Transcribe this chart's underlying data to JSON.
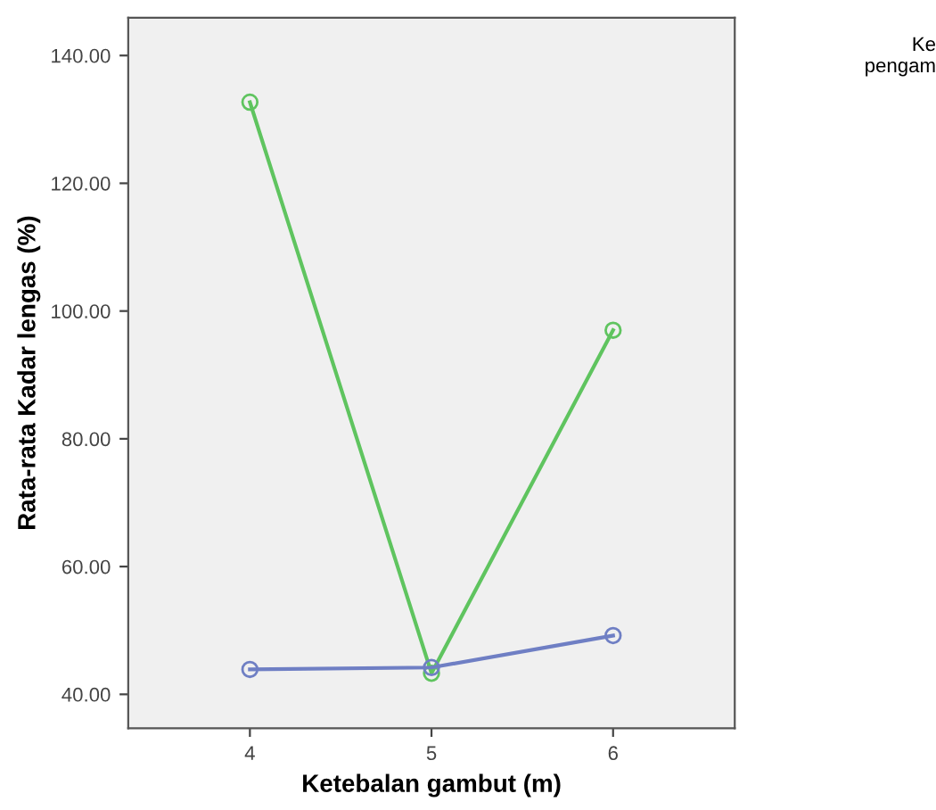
{
  "chart_data": {
    "type": "line",
    "xlabel": "Ketebalan gambut (m)",
    "ylabel": "Rata-rata Kadar lengas (%)",
    "legend_title": "Ke\npengam",
    "categories": [
      "4",
      "5",
      "6"
    ],
    "series": [
      {
        "color": "#5fc45f",
        "values": [
          132.7,
          43.3,
          97.0
        ]
      },
      {
        "color": "#6f7fc4",
        "values": [
          43.9,
          44.2,
          49.2
        ]
      }
    ],
    "ylim": [
      34.7,
      145.9
    ],
    "yticks": [
      {
        "value": 40,
        "label": "40.00"
      },
      {
        "value": 60,
        "label": "60.00"
      },
      {
        "value": 80,
        "label": "80.00"
      },
      {
        "value": 100,
        "label": "100.00"
      },
      {
        "value": 120,
        "label": "120.00"
      },
      {
        "value": 140,
        "label": "140.00"
      }
    ],
    "marker": "circle",
    "grid": false
  }
}
